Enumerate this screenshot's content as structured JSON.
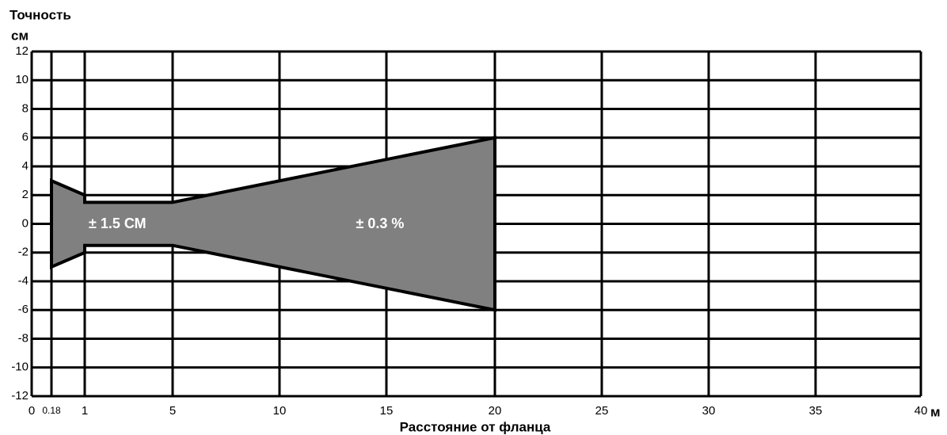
{
  "chart_data": {
    "type": "area",
    "ylabel": "Точность",
    "yunit": "см",
    "xlabel": "Расстояние от фланца",
    "xunit": "м",
    "x": [
      0.18,
      1,
      1,
      5,
      20
    ],
    "upper": [
      3,
      2,
      1.5,
      1.5,
      6
    ],
    "lower": [
      -3,
      -2,
      -1.5,
      -1.5,
      -6
    ],
    "color": "#808080",
    "annotations": [
      "± 1.5 СМ",
      "± 0.3 %"
    ],
    "xlim": [
      0,
      40
    ],
    "xticks": [
      0,
      0.18,
      1,
      5,
      10,
      15,
      20,
      25,
      30,
      35,
      40
    ],
    "ylim": [
      -12,
      12
    ],
    "yticks": [
      -12,
      -10,
      -8,
      -6,
      -4,
      -2,
      0,
      2,
      4,
      6,
      8,
      10,
      12
    ],
    "grid": true
  }
}
